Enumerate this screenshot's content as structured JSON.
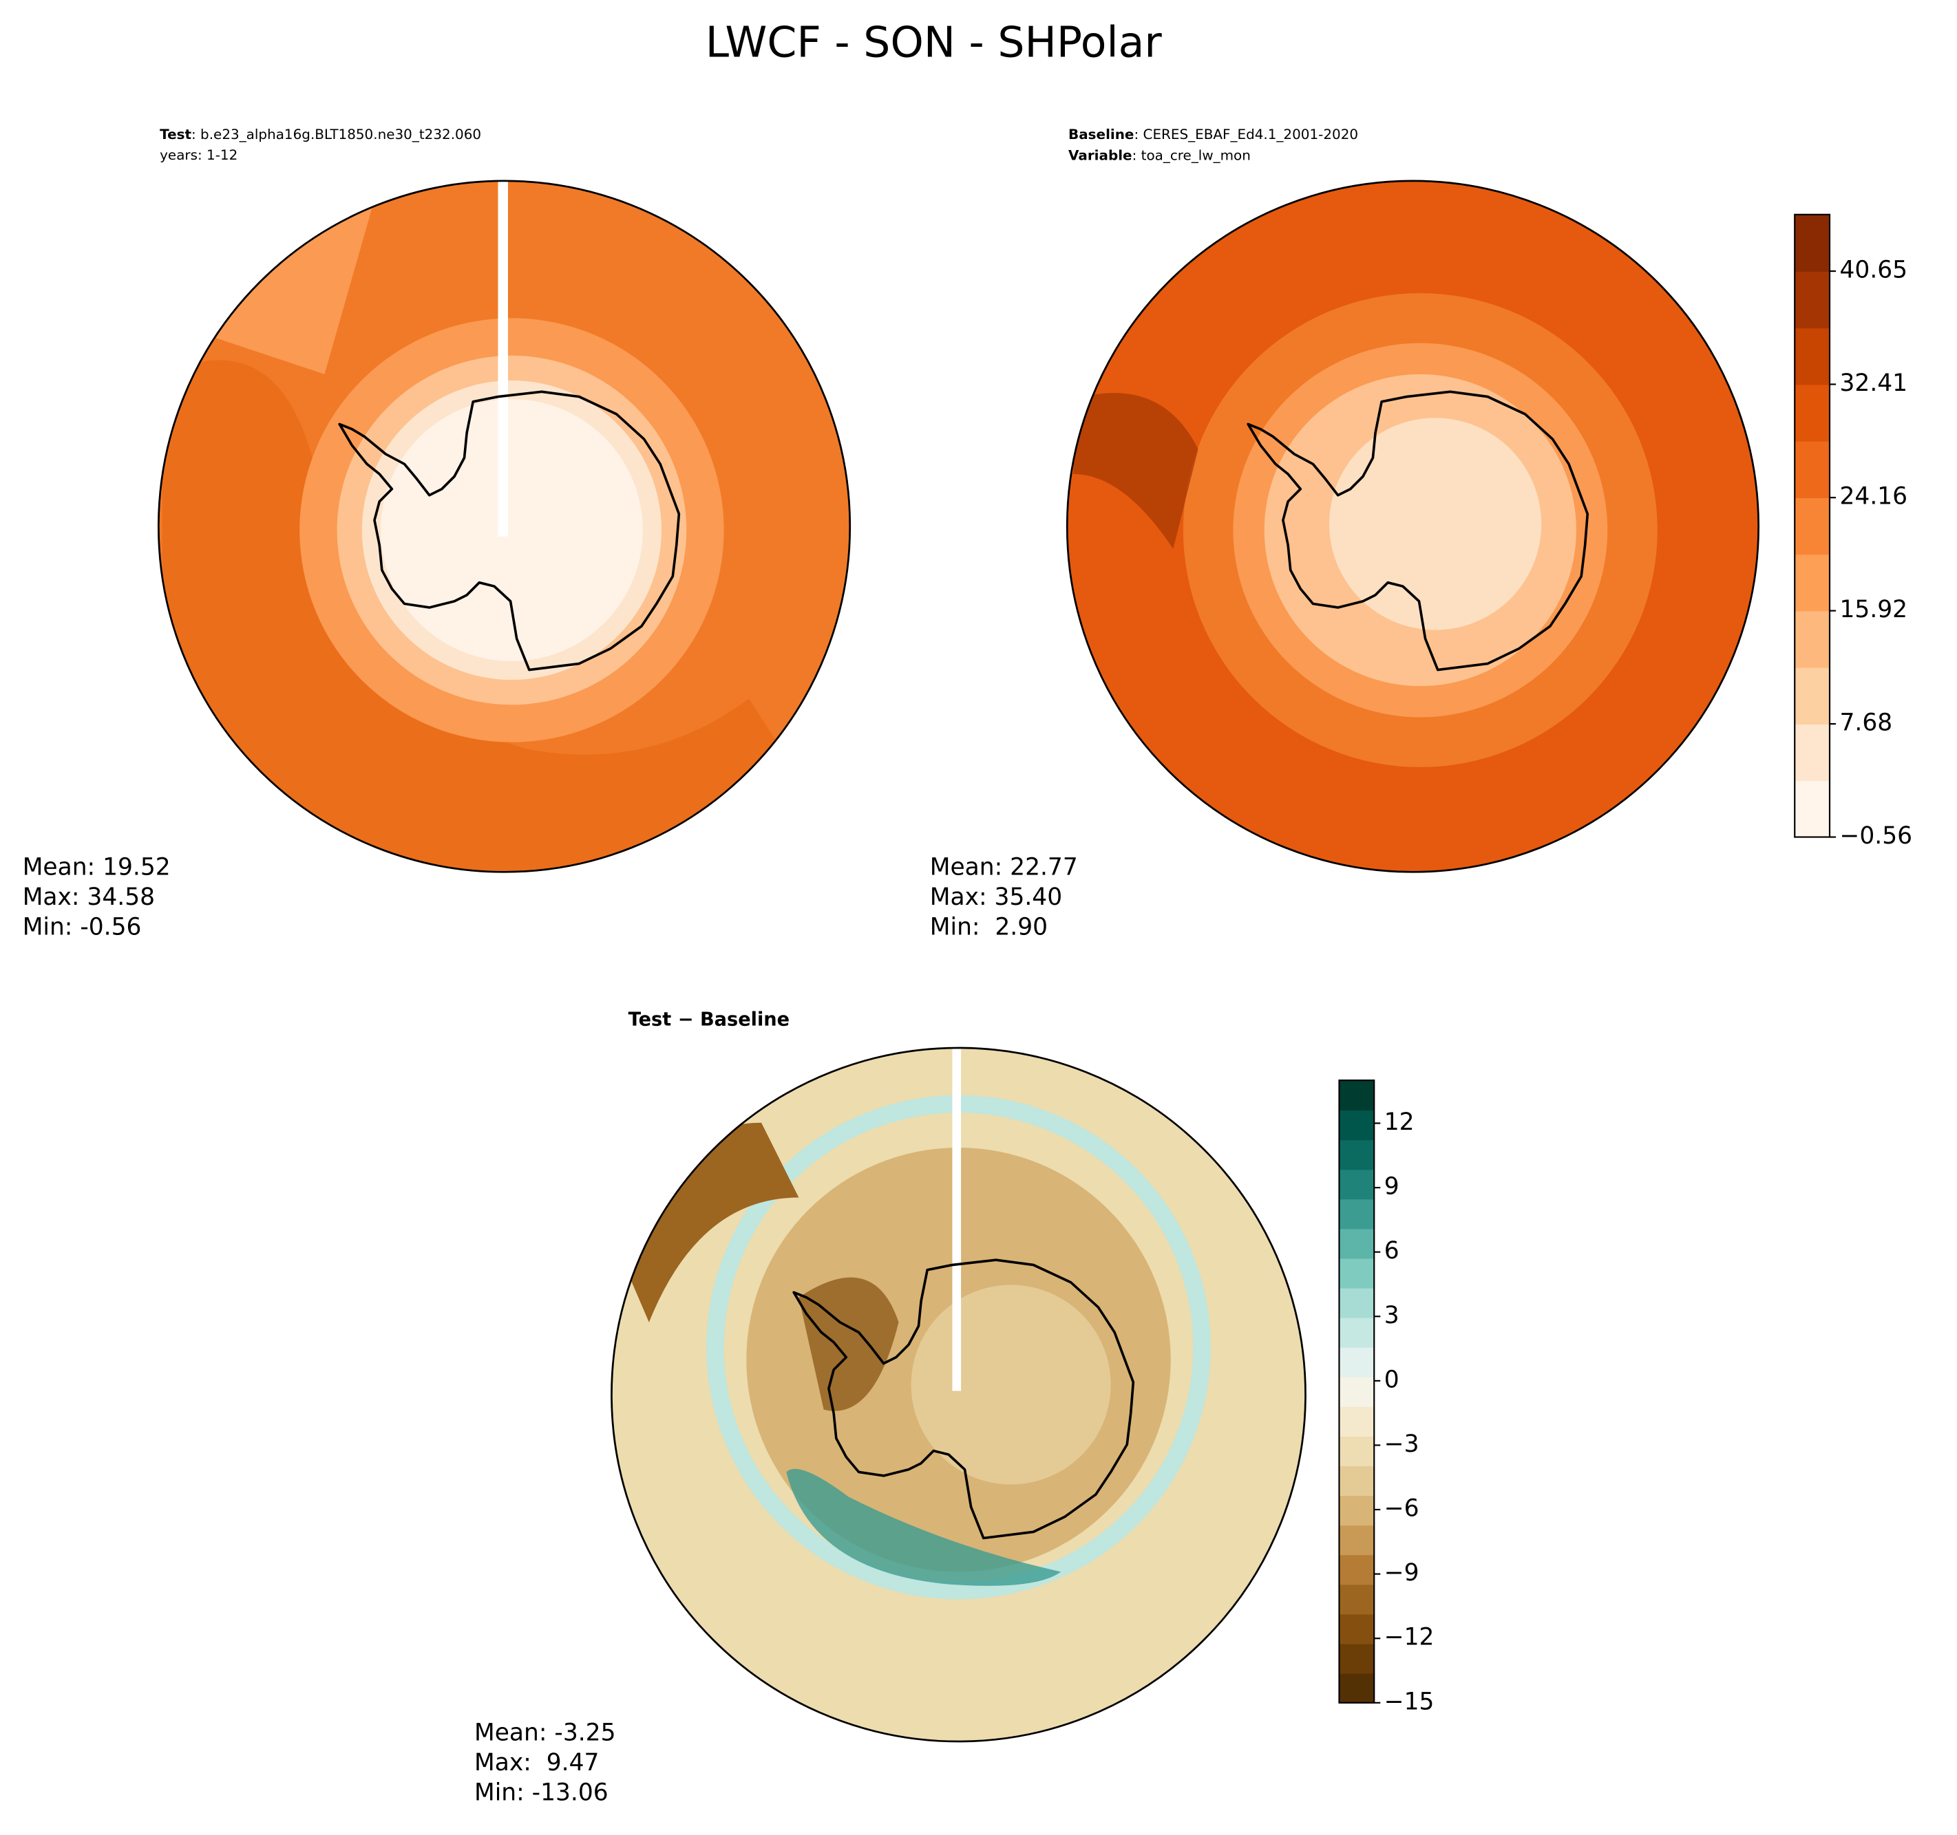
{
  "chart_data": {
    "type": "polar_contour",
    "title": "LWCF - SON - SHPolar",
    "panels": [
      {
        "label_name": "Test",
        "label_value": ": b.e23_alpha16g.BLT1850.ne30_t232.060",
        "label_line2": "years: 1-12",
        "stats": [
          "Mean: 19.52",
          "Max: 34.58",
          "Min: -0.56"
        ]
      },
      {
        "label_name": "Baseline",
        "label_value": ": CERES_EBAF_Ed4.1_2001-2020",
        "label_name2": "Variable",
        "label_value2": ": toa_cre_lw_mon",
        "stats": [
          "Mean: 22.77",
          "Max: 35.40",
          "Min:  2.90"
        ]
      },
      {
        "title": "Test − Baseline",
        "stats": [
          "Mean: -3.25",
          "Max:  9.47",
          "Min: -13.06"
        ]
      }
    ],
    "colorbar": {
      "ylim": [
        -0.56,
        44.77
      ],
      "yticks": [
        {
          "value": -0.56,
          "label": "−0.56"
        },
        7.68,
        15.92,
        24.16,
        32.41,
        40.65
      ],
      "colors": [
        "#fff5eb",
        "#fee6ce",
        "#fdd0a2",
        "#fdb97d",
        "#fd9f55",
        "#f88536",
        "#ee6a1a",
        "#e15509",
        "#c74401",
        "#a53603",
        "#8a2a03"
      ]
    },
    "diff_colorbar": {
      "ylim": [
        -15,
        14
      ],
      "yticks": [
        {
          "value": -15,
          "label": "−15"
        },
        {
          "value": -12,
          "label": "−12"
        },
        {
          "value": -9,
          "label": "−9"
        },
        {
          "value": -6,
          "label": "−6"
        },
        {
          "value": -3,
          "label": "−3"
        },
        0,
        3,
        6,
        9,
        12
      ],
      "colors": [
        "#543005",
        "#6b3d07",
        "#85500f",
        "#9c6520",
        "#b57c35",
        "#c99a55",
        "#d8b476",
        "#e4cb95",
        "#eedcb3",
        "#f4e9cc",
        "#f5f2e6",
        "#e2f1ee",
        "#c6e8e2",
        "#a6dcd3",
        "#80cbbf",
        "#5db4a9",
        "#3c9c92",
        "#1f8379",
        "#0b6b61",
        "#01564b",
        "#003c30"
      ]
    }
  }
}
